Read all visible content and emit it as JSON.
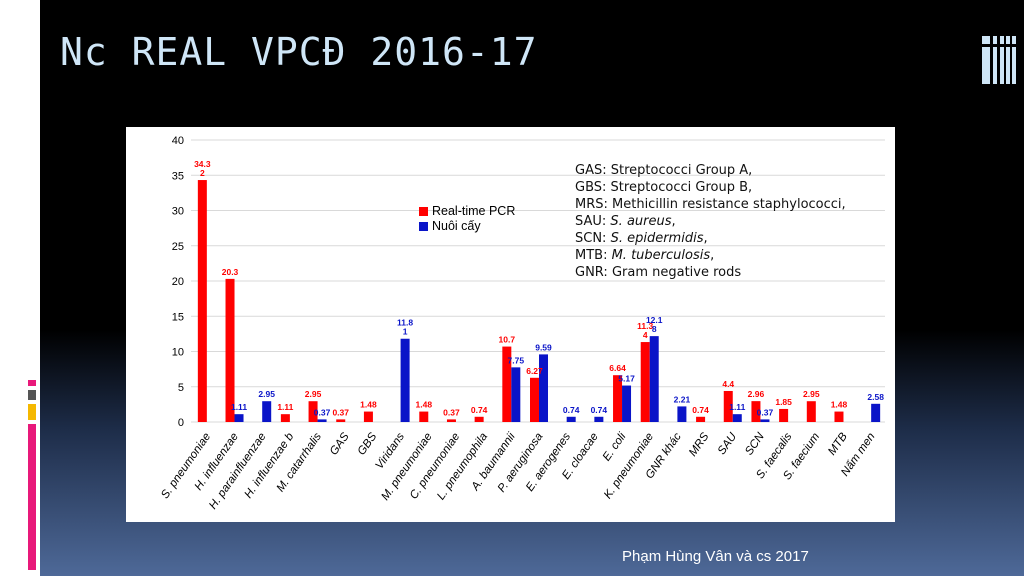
{
  "slide": {
    "title": "Nc REAL VPCĐ 2016-17",
    "footer": "Phạm Hùng Vân và cs 2017"
  },
  "colors": {
    "pcr": "#ff0000",
    "culture": "#0a14c8",
    "title": "#cfe6f7",
    "background": "#000000"
  },
  "abbreviations": [
    {
      "prefix": "GAS: ",
      "text": "Streptococci Group A,",
      "italic": false
    },
    {
      "prefix": "GBS: ",
      "text": "Streptococci Group B,",
      "italic": false
    },
    {
      "prefix": "MRS: ",
      "text": "Methicillin resistance staphylococci,",
      "italic": false
    },
    {
      "prefix": "SAU: ",
      "text": "S. aureus",
      "suffix": ",",
      "italic": true
    },
    {
      "prefix": "SCN: ",
      "text": "S. epidermidis",
      "suffix": ",",
      "italic": true
    },
    {
      "prefix": "MTB: ",
      "text": "M. tuberculosis",
      "suffix": ",",
      "italic": true
    },
    {
      "prefix": "GNR: ",
      "text": "Gram negative rods",
      "italic": false
    }
  ],
  "chart_data": {
    "type": "bar",
    "title": "",
    "xlabel": "",
    "ylabel": "",
    "ylim": [
      0,
      40
    ],
    "yticks": [
      0,
      5,
      10,
      15,
      20,
      25,
      30,
      35,
      40
    ],
    "grid": true,
    "legend_position": "upper-left-center",
    "categories": [
      "S. pneumoniae",
      "H. influenzae",
      "H. parainfluenzae",
      "H. influenzae b",
      "M. catarrhalis",
      "GAS",
      "GBS",
      "Viridans",
      "M. pneumoniae",
      "C. pneumoniae",
      "L. pneumophila",
      "A. baumannii",
      "P. aeruginosa",
      "E. aerogenes",
      "E. cloacae",
      "E. coli",
      "K. pneumoniae",
      "GNR khác",
      "MRS",
      "SAU",
      "SCN",
      "S. faecalis",
      "S. faecium",
      "MTB",
      "Nấm men"
    ],
    "series": [
      {
        "name": "Real-time PCR",
        "color": "#ff0000",
        "values": [
          34.32,
          20.3,
          null,
          1.11,
          2.95,
          0.37,
          1.48,
          null,
          1.48,
          0.37,
          0.74,
          10.7,
          6.27,
          null,
          null,
          6.64,
          11.34,
          null,
          0.74,
          4.4,
          2.96,
          1.85,
          2.95,
          1.48,
          null
        ],
        "labels": [
          "34.3\n2",
          "20.3",
          "",
          "1.11",
          "2.95",
          "0.37",
          "1.48",
          "",
          "1.48",
          "0.37",
          "0.74",
          "10.7",
          "6.27",
          "",
          "",
          "6.64",
          "11.3\n4",
          "",
          "0.74",
          "4.4",
          "2.96",
          "1.85",
          "2.95",
          "1.48",
          ""
        ]
      },
      {
        "name": "Nuôi cấy",
        "color": "#0a14c8",
        "values": [
          null,
          1.11,
          2.95,
          null,
          0.37,
          null,
          null,
          11.81,
          null,
          null,
          null,
          7.75,
          9.59,
          0.74,
          0.74,
          5.17,
          12.18,
          2.21,
          null,
          1.11,
          0.37,
          null,
          null,
          null,
          2.58
        ],
        "labels": [
          "",
          "1.11",
          "2.95",
          "",
          "0.37",
          "",
          "",
          "11.8\n1",
          "",
          "",
          "",
          "7.75",
          "9.59",
          "0.74",
          "0.74",
          "5.17",
          "12.1\n8",
          "2.21",
          "",
          "1.11",
          "0.37",
          "",
          "",
          "",
          "2.58"
        ]
      }
    ]
  }
}
